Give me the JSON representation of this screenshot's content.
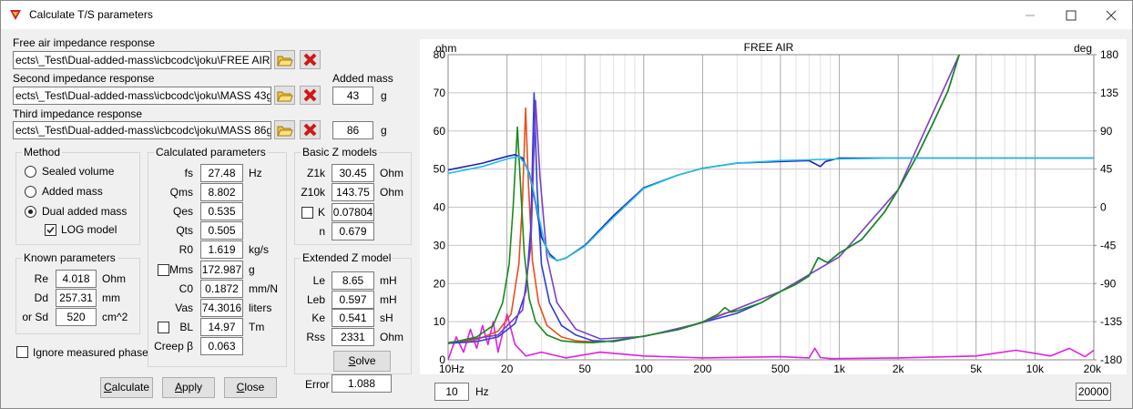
{
  "window": {
    "title": "Calculate T/S parameters"
  },
  "files": {
    "added_mass_label": "Added mass",
    "items": [
      {
        "label": "Free air impedance response",
        "path": "ects\\_Test\\Dual-added-mass\\icbcodc\\joku\\FREE AIR.txt"
      },
      {
        "label": "Second impedance response",
        "path": "ects\\_Test\\Dual-added-mass\\icbcodc\\joku\\MASS 43g.txt",
        "mass": 43,
        "unit": "g"
      },
      {
        "label": "Third impedance response",
        "path": "ects\\_Test\\Dual-added-mass\\icbcodc\\joku\\MASS 86g.txt",
        "mass": 86,
        "unit": "g"
      }
    ]
  },
  "method": {
    "title": "Method",
    "options": [
      "Sealed volume",
      "Added mass",
      "Dual added mass"
    ],
    "selected": 2,
    "log_model": "LOG model",
    "log_model_checked": true
  },
  "known": {
    "title": "Known parameters",
    "rows": [
      {
        "label": "Re",
        "value": 4.018,
        "unit": "Ohm"
      },
      {
        "label": "Dd",
        "value": 257.31,
        "unit": "mm"
      },
      {
        "label": "or Sd",
        "value": 520,
        "unit": "cm^2"
      }
    ]
  },
  "ignore_phase": {
    "label": "Ignore measured phase",
    "checked": false
  },
  "calculated": {
    "title": "Calculated parameters",
    "rows": [
      {
        "label": "fs",
        "value": 27.48,
        "unit": "Hz"
      },
      {
        "label": "Qms",
        "value": 8.802
      },
      {
        "label": "Qes",
        "value": 0.535
      },
      {
        "label": "Qts",
        "value": 0.505
      },
      {
        "label": "R0",
        "value": 1.619,
        "unit": "kg/s"
      },
      {
        "label": "Mms",
        "value": 172.987,
        "unit": "g",
        "checked": false
      },
      {
        "label": "C0",
        "value": 0.1872,
        "unit": "mm/N"
      },
      {
        "label": "Vas",
        "value": 74.3016,
        "unit": "liters"
      },
      {
        "label": "BL",
        "value": 14.97,
        "unit": "Tm",
        "checked": false
      },
      {
        "label": "Creep β",
        "value": 0.063
      }
    ]
  },
  "basic_z": {
    "title": "Basic Z models",
    "rows": [
      {
        "label": "Z1k",
        "value": 30.45,
        "unit": "Ohm"
      },
      {
        "label": "Z10k",
        "value": 143.75,
        "unit": "Ohm"
      },
      {
        "label": "K",
        "value": 0.07804,
        "checked": false
      },
      {
        "label": "n",
        "value": 0.679
      }
    ]
  },
  "extended_z": {
    "title": "Extended Z model",
    "rows": [
      {
        "label": "Le",
        "value": 8.65,
        "unit": "mH"
      },
      {
        "label": "Leb",
        "value": 0.597,
        "unit": "mH"
      },
      {
        "label": "Ke",
        "value": 0.541,
        "unit": "sH"
      },
      {
        "label": "Rss",
        "value": 2331,
        "unit": "Ohm"
      }
    ],
    "solve": "Solve"
  },
  "error": {
    "label": "Error",
    "value": 1.088
  },
  "buttons": [
    "Calculate",
    "Apply",
    "Close"
  ],
  "chart_controls": {
    "xmin": 10,
    "xmin_unit": "Hz",
    "xmax": 20000
  },
  "chart_data": {
    "type": "line",
    "title": "FREE AIR",
    "y_label": "ohm",
    "y2_label": "deg",
    "log_x": true,
    "grid": true,
    "xlim": [
      10,
      20000
    ],
    "xticks": [
      {
        "value": 10,
        "label": "10Hz"
      },
      20,
      50,
      100,
      200,
      500,
      {
        "value": 1000,
        "label": "1k"
      },
      {
        "value": 2000,
        "label": "2k"
      },
      {
        "value": 5000,
        "label": "5k"
      },
      {
        "value": 10000,
        "label": "10k"
      },
      {
        "value": 20000,
        "label": "20k"
      }
    ],
    "xminor": [
      30,
      40,
      60,
      70,
      80,
      90,
      300,
      400,
      600,
      700,
      800,
      900,
      3000,
      4000,
      6000,
      7000,
      8000,
      9000
    ],
    "ylim": [
      0,
      80
    ],
    "yticks": [
      0,
      10,
      20,
      30,
      40,
      50,
      60,
      70,
      80
    ],
    "y2lim": [
      -180,
      180
    ],
    "y2ticks": [
      -180,
      -135,
      -90,
      -45,
      0,
      45,
      90,
      135,
      180
    ],
    "series": [
      {
        "color": "#e020e0",
        "x": [
          10,
          11,
          12,
          13,
          14,
          15,
          16,
          17,
          18,
          19,
          20,
          22,
          25,
          30,
          40,
          60,
          100,
          200,
          500,
          700,
          750,
          800,
          900,
          2000,
          5000,
          8000,
          12000,
          15000,
          18000,
          20000
        ],
        "values": [
          0,
          6,
          2,
          8,
          3,
          9,
          4,
          10,
          2,
          7,
          12,
          4,
          1,
          2,
          0.5,
          2,
          1,
          0.5,
          0.8,
          0.5,
          3,
          0.6,
          0.3,
          0.5,
          1,
          2.5,
          1,
          3,
          0.8,
          2.5
        ]
      },
      {
        "color": "#e8501a",
        "x": [
          10,
          14,
          18,
          21,
          23,
          24,
          24.9,
          25.8,
          27,
          29,
          32,
          38,
          45,
          55,
          70,
          100,
          150,
          200,
          260,
          300
        ],
        "values": [
          4.3,
          5.3,
          7.5,
          12,
          25,
          42,
          66,
          45,
          26,
          15,
          9,
          6,
          5,
          4.7,
          4.9,
          6.2,
          7.9,
          9.9,
          12.2,
          12.9
        ]
      },
      {
        "color": "#2b3fd6",
        "x": [
          10,
          14,
          18,
          22,
          25,
          26.5,
          27.5,
          28.5,
          30,
          33,
          38,
          45,
          55,
          70,
          100,
          150,
          200,
          300,
          400,
          500,
          600,
          700,
          780,
          830,
          870,
          1000,
          1300,
          1700,
          2000,
          2500,
          3000,
          3600,
          4100
        ],
        "values": [
          4.3,
          4.8,
          6,
          9.5,
          18,
          35,
          70,
          45,
          25,
          15,
          9,
          6.5,
          5,
          4.8,
          6.2,
          7.9,
          9.8,
          12.2,
          15,
          17.9,
          19.8,
          22,
          26.8,
          26,
          25.5,
          28,
          31.5,
          38.7,
          44.6,
          53.5,
          61.8,
          70.6,
          80
        ]
      },
      {
        "color": "#7b3fc8",
        "x": [
          10,
          18,
          24,
          26.5,
          28,
          29.5,
          32,
          36,
          45,
          60,
          100,
          200,
          500,
          1000,
          2000,
          4100
        ],
        "values": [
          4.5,
          6.5,
          13,
          30,
          68,
          48,
          27,
          15,
          8,
          5.5,
          6.1,
          9.8,
          17.9,
          27,
          44.6,
          80
        ]
      },
      {
        "color": "#1a8a1a",
        "x": [
          10,
          14,
          17,
          19,
          20.5,
          21.5,
          22.6,
          23.5,
          24.5,
          26,
          28,
          32,
          38,
          45,
          55,
          70,
          100,
          150,
          200,
          240,
          260,
          280,
          300,
          400,
          500,
          600,
          700,
          780,
          830,
          870,
          1000,
          1300,
          1700,
          2000,
          2500,
          3000,
          3600,
          4100
        ],
        "values": [
          4.3,
          6,
          9,
          15,
          25,
          40,
          61,
          45,
          28,
          16,
          10,
          6.5,
          5,
          4.6,
          4.5,
          5,
          6.2,
          7.9,
          9.9,
          12,
          13.7,
          12.5,
          12.8,
          15,
          17.9,
          19.8,
          22,
          26.8,
          26,
          25.5,
          28,
          31.5,
          38.7,
          44.6,
          53.5,
          61.8,
          70.6,
          80
        ]
      },
      {
        "color": "#2020c0",
        "axis": "y2",
        "x": [
          10,
          15,
          20,
          22,
          24,
          26,
          28,
          30,
          33,
          36,
          40,
          50,
          70,
          100,
          150,
          200,
          300,
          500,
          700,
          800,
          850,
          1000,
          2000,
          5000,
          20000
        ],
        "values": [
          44,
          52,
          60,
          62,
          58,
          40,
          5,
          -35,
          -55,
          -63,
          -60,
          -45,
          -10,
          23,
          38,
          46,
          52,
          54,
          55,
          48,
          54,
          58,
          58,
          58,
          58
        ]
      },
      {
        "color": "#20c0e0",
        "axis": "y2",
        "x": [
          10,
          15,
          20,
          23,
          25,
          27,
          29,
          31,
          33,
          36,
          40,
          50,
          70,
          100,
          150,
          200,
          300,
          500,
          1000,
          2000,
          5000,
          20000
        ],
        "values": [
          40,
          48,
          57,
          60,
          50,
          25,
          -10,
          -40,
          -58,
          -63,
          -60,
          -46,
          -12,
          22,
          38,
          46,
          52,
          55,
          57,
          58,
          58,
          58
        ]
      }
    ]
  }
}
